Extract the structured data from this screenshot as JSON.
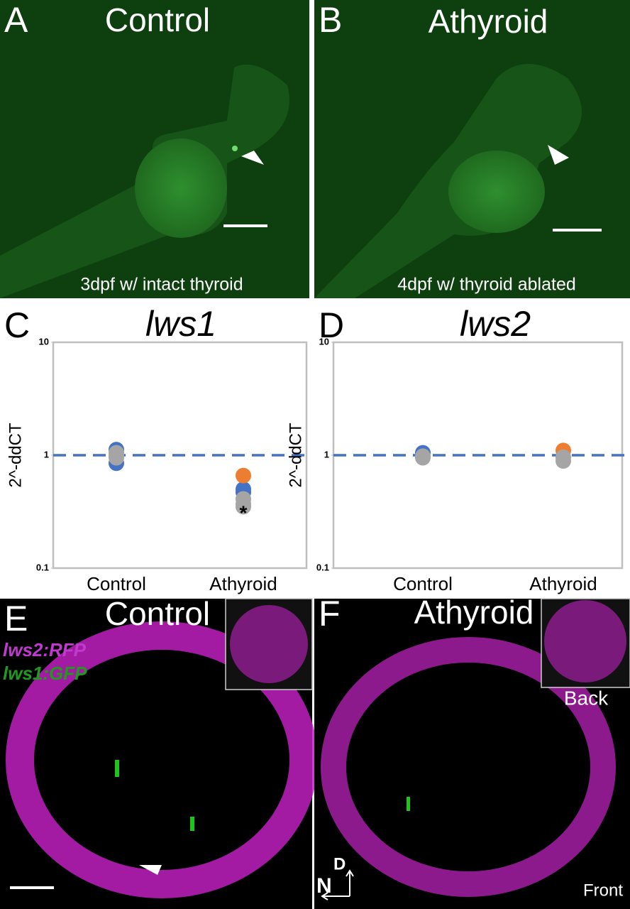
{
  "panels": {
    "A": {
      "letter": "A",
      "title": "Control",
      "caption": "3dpf w/ intact thyroid"
    },
    "B": {
      "letter": "B",
      "title": "Athyroid",
      "caption": "4dpf w/ thyroid ablated"
    },
    "E": {
      "letter": "E",
      "title": "Control",
      "labels": [
        "lws2:RFP",
        "lws1:GFP"
      ]
    },
    "F": {
      "letter": "F",
      "title": "Athyroid",
      "inset_label": "Back",
      "corner_label": "Front",
      "axis_labels": [
        "D",
        "N"
      ]
    }
  },
  "chart_data": [
    {
      "type": "dot",
      "panel": "C",
      "title": "lws1",
      "y_label": "2^-ddCT",
      "categories": [
        "Control",
        "Athyroid"
      ],
      "series": [
        {
          "color": "#4472c4",
          "values": [
            0.85,
            0.47
          ]
        },
        {
          "color": "#4472c4",
          "values": [
            1.12,
            0.5
          ]
        },
        {
          "color": "#ed7d31",
          "values": [
            null,
            0.66
          ]
        },
        {
          "color": "#a5a5a5",
          "values": [
            0.95,
            0.41
          ]
        },
        {
          "color": "#a5a5a5",
          "values": [
            1.0,
            0.37
          ]
        },
        {
          "color": "#a5a5a5",
          "values": [
            1.05,
            0.35
          ]
        }
      ],
      "annotation": {
        "text": "*",
        "category": 1,
        "value": 0.3
      },
      "reference_line": {
        "value": 1,
        "color": "#4472c4",
        "dashed": true
      },
      "ylim": [
        0.1,
        10
      ],
      "yticks": [
        0.1,
        1,
        10
      ],
      "log_y": true
    },
    {
      "type": "dot",
      "panel": "D",
      "title": "lws2",
      "y_label": "2^-ddCT",
      "categories": [
        "Control",
        "Athyroid"
      ],
      "series": [
        {
          "color": "#4472c4",
          "values": [
            1.05,
            null
          ]
        },
        {
          "color": "#ed7d31",
          "values": [
            null,
            1.1
          ]
        },
        {
          "color": "#a5a5a5",
          "values": [
            0.98,
            0.96
          ]
        },
        {
          "color": "#a5a5a5",
          "values": [
            0.95,
            0.89
          ]
        }
      ],
      "reference_line": {
        "value": 1,
        "color": "#4472c4",
        "dashed": true
      },
      "ylim": [
        0.1,
        10
      ],
      "yticks": [
        0.1,
        1,
        10
      ],
      "log_y": true
    }
  ]
}
